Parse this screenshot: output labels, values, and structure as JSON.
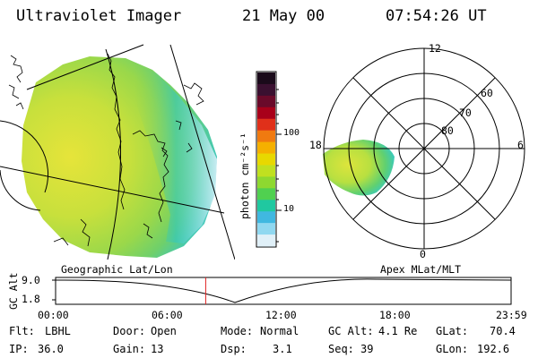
{
  "header": {
    "instrument": "Ultraviolet Imager",
    "date": "21 May 00",
    "time": "07:54:26 UT"
  },
  "colorbar": {
    "unit_label": "photon cm⁻²s⁻¹",
    "tick_labels": [
      "100",
      "10"
    ],
    "colors": [
      "#1a0a1a",
      "#3a1030",
      "#6a0a2a",
      "#a8001a",
      "#e0301a",
      "#f07a10",
      "#f5b000",
      "#e8d800",
      "#c0e020",
      "#8ed830",
      "#50d050",
      "#20c8a0",
      "#40b8e0",
      "#90d8f0",
      "#e0f0f8"
    ]
  },
  "left_panel": {
    "label": "Geographic Lat/Lon"
  },
  "polar_panel": {
    "label": "Apex MLat/MLT",
    "mlt_labels": {
      "top": "12",
      "left": "18",
      "right": "6",
      "bottom": "0"
    },
    "lat_labels": [
      "60",
      "70",
      "80"
    ]
  },
  "timeline": {
    "ylabel": "GC Alt",
    "y_ticks": [
      "9.0",
      "1.8"
    ],
    "x_ticks": [
      "00:00",
      "06:00",
      "12:00",
      "18:00",
      "23:59"
    ],
    "current_time_marker": "07:54:26",
    "marker_color": "#e02020"
  },
  "info": {
    "filter": {
      "label": "Flt:",
      "value": "LBHL"
    },
    "ip": {
      "label": "IP:",
      "value": "36.0"
    },
    "door": {
      "label": "Door:",
      "value": "Open"
    },
    "gain": {
      "label": "Gain:",
      "value": "13"
    },
    "mode": {
      "label": "Mode:",
      "value": "Normal"
    },
    "dsp": {
      "label": "Dsp:",
      "value": "3.1"
    },
    "gc_alt": {
      "label": "GC Alt:",
      "value": "4.1 Re"
    },
    "seq": {
      "label": "Seq:",
      "value": "39"
    },
    "glat": {
      "label": "GLat:",
      "value": "70.4"
    },
    "glon": {
      "label": "GLon:",
      "value": "192.6"
    }
  }
}
